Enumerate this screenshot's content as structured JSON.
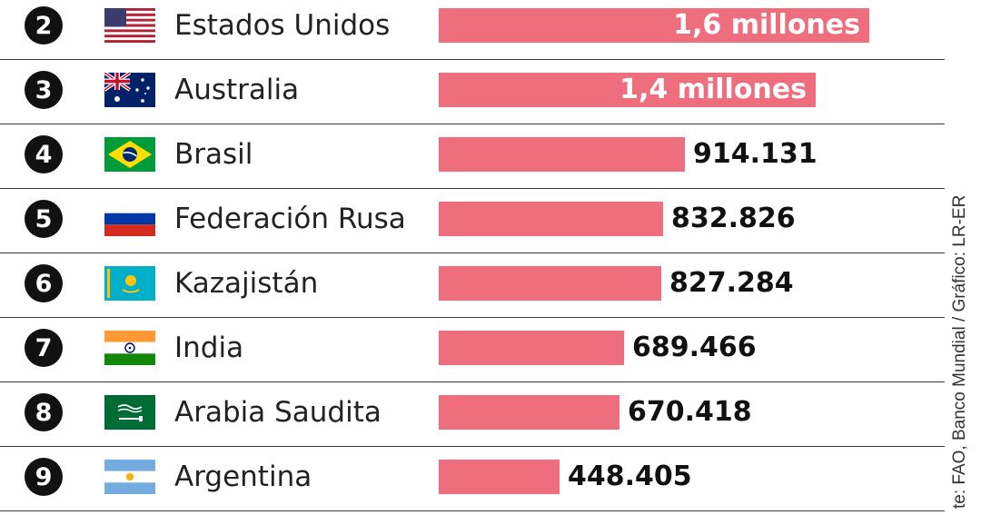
{
  "chart_data": {
    "type": "bar",
    "orientation": "horizontal",
    "bar_color": "#ee6e7e",
    "categories": [
      "Estados Unidos",
      "Australia",
      "Brasil",
      "Federación Rusa",
      "Kazajistán",
      "India",
      "Arabia Saudita",
      "Argentina"
    ],
    "values": [
      1600000,
      1400000,
      914131,
      832826,
      827284,
      689466,
      670418,
      448405
    ],
    "value_labels": [
      "1,6 millones",
      "1,4 millones",
      "914.131",
      "832.826",
      "827.284",
      "689.466",
      "670.418",
      "448.405"
    ],
    "ranks": [
      "2",
      "3",
      "4",
      "5",
      "6",
      "7",
      "8",
      "9"
    ],
    "flags": [
      "flag-usa",
      "flag-australia",
      "flag-brazil",
      "flag-russia",
      "flag-kazakhstan",
      "flag-india",
      "flag-saudi-arabia",
      "flag-argentina"
    ],
    "xlim": [
      0,
      1600000
    ]
  },
  "source_note": "te: FAO, Banco Mundial / Gráfico: LR-ER"
}
